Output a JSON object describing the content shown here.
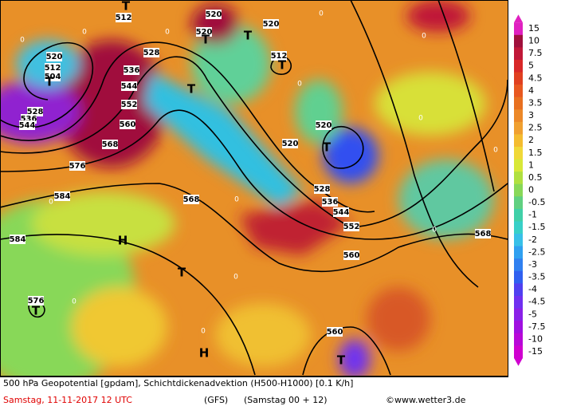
{
  "map": {
    "labels": [
      "520",
      "512",
      "504",
      "T",
      "528",
      "536",
      "544",
      "536",
      "544",
      "552",
      "528",
      "560",
      "568",
      "576",
      "584",
      "584",
      "576",
      "T",
      "H",
      "T",
      "H",
      "T",
      "568",
      "528",
      "536",
      "544",
      "552",
      "560",
      "568",
      "560",
      "520",
      "520",
      "T",
      "512",
      "T",
      "520",
      "T",
      "T",
      "520",
      "T",
      "512",
      "T",
      "520",
      "0",
      "0",
      "0",
      "0",
      "0",
      "0",
      "0",
      "0",
      "0",
      "0",
      "0",
      "0",
      "0",
      "0"
    ]
  },
  "colorbar": {
    "labels": [
      "15",
      "10",
      "7.5",
      "5",
      "4.5",
      "4",
      "3.5",
      "3",
      "2.5",
      "2",
      "1.5",
      "1",
      "0.5",
      "0",
      "-0.5",
      "-1",
      "-1.5",
      "-2",
      "-2.5",
      "-3",
      "-3.5",
      "-4",
      "-4.5",
      "-5",
      "-7.5",
      "-10",
      "-15"
    ],
    "colors": [
      "#e020c0",
      "#a0103c",
      "#c01838",
      "#d82828",
      "#e04020",
      "#e85820",
      "#e87020",
      "#ec8828",
      "#f0a030",
      "#f4bc30",
      "#f0d838",
      "#d8e838",
      "#b0e040",
      "#88d858",
      "#60d080",
      "#40d0a8",
      "#38d0c8",
      "#38c0e8",
      "#30a0f0",
      "#3080f0",
      "#3060f0",
      "#5040f0",
      "#7030f0",
      "#8a20e8",
      "#a010e0",
      "#b808d8",
      "#d000d0"
    ]
  },
  "footer": {
    "line1": "500 hPa Geopotential [gpdam], Schichtdickenadvektion (H500-H1000) [0.1 K/h]",
    "date": "Samstag, 11-11-2017  12 UTC",
    "model": "(GFS)",
    "run": "(Samstag 00 + 12)",
    "credit": "©www.wetter3.de"
  }
}
